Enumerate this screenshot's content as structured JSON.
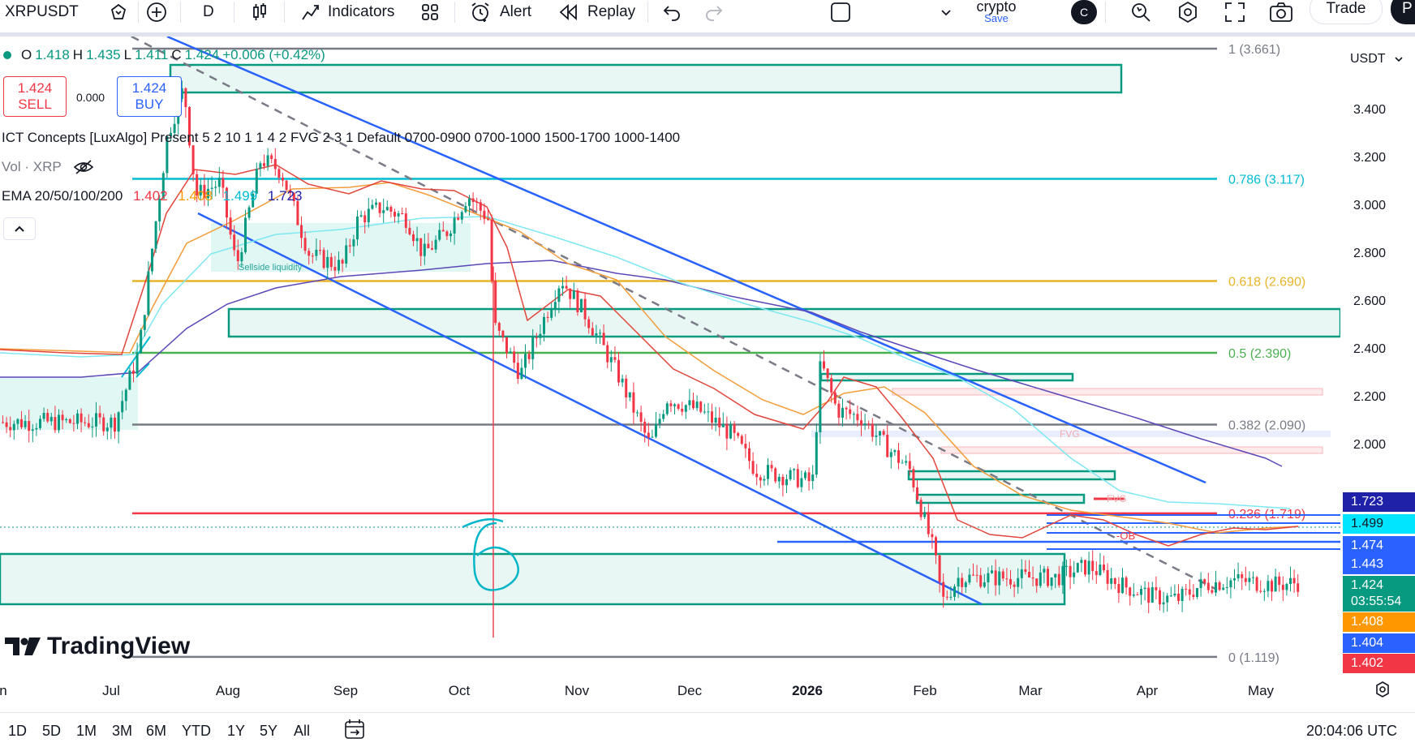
{
  "toolbar": {
    "symbol": "XRPUSDT",
    "interval": "D",
    "indicators_label": "Indicators",
    "alert_label": "Alert",
    "replay_label": "Replay",
    "layout_name": "crypto",
    "save_label": "Save",
    "avatar_letter": "C",
    "trade_label": "Trade",
    "publish_label": "P"
  },
  "legend": {
    "ohlc": {
      "o_tag": "O",
      "o": "1.418",
      "h_tag": "H",
      "h": "1.435",
      "l_tag": "L",
      "l": "1.411",
      "c_tag": "C",
      "c": "1.424",
      "change": "+0.006 (+0.42%)"
    },
    "sell": {
      "price": "1.424",
      "label": "SELL"
    },
    "spread": "0.000",
    "buy": {
      "price": "1.424",
      "label": "BUY"
    },
    "ict": "ICT Concepts [LuxAlgo] Present 5 2 10 1 1 4 2 FVG 2 3 1 Default 0700-0900 0700-1000 1500-1700 1000-1400",
    "vol": "Vol · XRP",
    "ema": {
      "label": "EMA 20/50/100/200",
      "v20": "1.402",
      "v50": "1.408",
      "v100": "1.499",
      "v200": "1.723"
    }
  },
  "price_axis": {
    "currency": "USDT",
    "ticks": [
      "3.400",
      "3.200",
      "3.000",
      "2.800",
      "2.600",
      "2.400",
      "2.200",
      "2.000"
    ],
    "labels": [
      {
        "text": "1.723",
        "color": "#1f22a8"
      },
      {
        "text": "1.499",
        "color": "#00e5ff",
        "text_color": "#131722"
      },
      {
        "text": "1.474",
        "color": "#2962ff"
      },
      {
        "text": "1.443",
        "color": "#2962ff"
      },
      {
        "text": "1.424",
        "color": "#089981"
      },
      {
        "text": "03:55:54",
        "color": "#089981"
      },
      {
        "text": "1.408",
        "color": "#ff9800"
      },
      {
        "text": "1.404",
        "color": "#2962ff"
      },
      {
        "text": "1.402",
        "color": "#f23645"
      }
    ]
  },
  "fibs": [
    {
      "label": "1 (3.661)",
      "price": 3.661,
      "color": "#787b86"
    },
    {
      "label": "0.786 (3.117)",
      "price": 3.117,
      "color": "#00bcd4"
    },
    {
      "label": "0.618 (2.690)",
      "price": 2.69,
      "color": "#e8b42a"
    },
    {
      "label": "0.5 (2.390)",
      "price": 2.39,
      "color": "#4caf50"
    },
    {
      "label": "0.382 (2.090)",
      "price": 2.09,
      "color": "#787b86"
    },
    {
      "label": "0.236 (1.719)",
      "price": 1.719,
      "color": "#f23645"
    },
    {
      "label": "0 (1.119)",
      "price": 1.119,
      "color": "#787b86"
    }
  ],
  "annotations": {
    "sellside": "Sellside liquidity",
    "fvg1": "FVG",
    "fvg2": "FVG",
    "ob": "-OB",
    "handwritten": "6"
  },
  "time_axis": [
    "n",
    "Jul",
    "Aug",
    "Sep",
    "Oct",
    "Nov",
    "Dec",
    "2026",
    "Feb",
    "Mar",
    "Apr",
    "May"
  ],
  "bottom": {
    "ranges": [
      "1D",
      "5D",
      "1M",
      "3M",
      "6M",
      "YTD",
      "1Y",
      "5Y",
      "All"
    ],
    "clock": "20:04:06 UTC"
  },
  "watermark": "TradingView"
}
